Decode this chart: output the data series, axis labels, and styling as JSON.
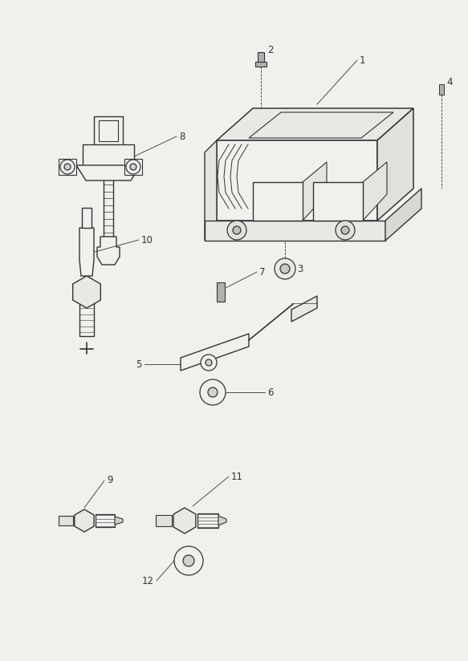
{
  "bg_color": "#f0f0ec",
  "line_color": "#333333",
  "lw": 0.9,
  "fig_w": 5.83,
  "fig_h": 8.24,
  "dpi": 100,
  "parts": {
    "coil_label": "8",
    "ecu_label": "1",
    "bolt2_label": "2",
    "bolt4_label": "4",
    "nut3_label": "3",
    "spark_label": "10",
    "bracket_label": "5",
    "washer6_label": "6",
    "screw7_label": "7",
    "sensor9_label": "9",
    "sensor11_label": "11",
    "washer12_label": "12"
  }
}
